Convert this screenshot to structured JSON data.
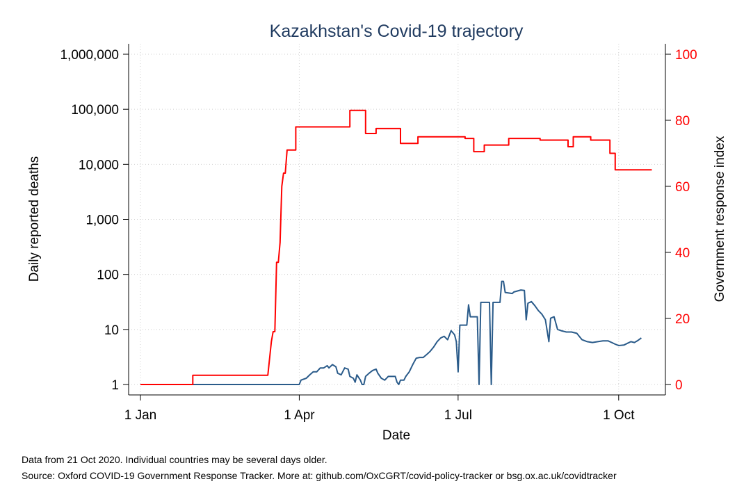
{
  "chart_data": {
    "type": "line",
    "title": "Kazakhstan's Covid-19 trajectory",
    "xlabel": "Date",
    "ylabel": "Daily reported deaths",
    "ylabel_right": "Government response index",
    "x_ticks": [
      {
        "label": "1 Jan",
        "date": "2020-01-01"
      },
      {
        "label": "1 Apr",
        "date": "2020-04-01"
      },
      {
        "label": "1 Jul",
        "date": "2020-07-01"
      },
      {
        "label": "1 Oct",
        "date": "2020-10-01"
      }
    ],
    "xlim": [
      "2020-01-01",
      "2020-10-21"
    ],
    "y_left_scale": "log",
    "ylim_left": [
      1,
      1000000
    ],
    "y_left_ticks": [
      {
        "label": "1",
        "value": 1
      },
      {
        "label": "10",
        "value": 10
      },
      {
        "label": "100",
        "value": 100
      },
      {
        "label": "1,000",
        "value": 1000
      },
      {
        "label": "10,000",
        "value": 10000
      },
      {
        "label": "100,000",
        "value": 100000
      },
      {
        "label": "1,000,000",
        "value": 1000000
      }
    ],
    "ylim_right": [
      0,
      100
    ],
    "y_right_ticks": [
      {
        "label": "0",
        "value": 0
      },
      {
        "label": "20",
        "value": 20
      },
      {
        "label": "40",
        "value": 40
      },
      {
        "label": "60",
        "value": 60
      },
      {
        "label": "80",
        "value": 80
      },
      {
        "label": "100",
        "value": 100
      }
    ],
    "grid": true,
    "series": [
      {
        "axis": "left",
        "color": "#2a5b8a",
        "points": [
          [
            "2020-01-01",
            1
          ],
          [
            "2020-04-01",
            1
          ],
          [
            "2020-04-02",
            1.2
          ],
          [
            "2020-04-05",
            1.3
          ],
          [
            "2020-04-07",
            1.5
          ],
          [
            "2020-04-09",
            1.7
          ],
          [
            "2020-04-11",
            1.7
          ],
          [
            "2020-04-13",
            2
          ],
          [
            "2020-04-15",
            2
          ],
          [
            "2020-04-17",
            2.2
          ],
          [
            "2020-04-18",
            2
          ],
          [
            "2020-04-20",
            2.3
          ],
          [
            "2020-04-22",
            2.1
          ],
          [
            "2020-04-23",
            1.6
          ],
          [
            "2020-04-25",
            1.5
          ],
          [
            "2020-04-27",
            2
          ],
          [
            "2020-04-29",
            1.9
          ],
          [
            "2020-04-30",
            1.4
          ],
          [
            "2020-05-02",
            1.3
          ],
          [
            "2020-05-03",
            1.1
          ],
          [
            "2020-05-04",
            1.5
          ],
          [
            "2020-05-06",
            1.2
          ],
          [
            "2020-05-07",
            1
          ],
          [
            "2020-05-08",
            1
          ],
          [
            "2020-05-09",
            1.4
          ],
          [
            "2020-05-11",
            1.6
          ],
          [
            "2020-05-13",
            1.8
          ],
          [
            "2020-05-15",
            1.9
          ],
          [
            "2020-05-16",
            1.6
          ],
          [
            "2020-05-18",
            1.3
          ],
          [
            "2020-05-20",
            1.2
          ],
          [
            "2020-05-22",
            1.4
          ],
          [
            "2020-05-24",
            1.4
          ],
          [
            "2020-05-26",
            1.4
          ],
          [
            "2020-05-27",
            1.1
          ],
          [
            "2020-05-28",
            1
          ],
          [
            "2020-05-29",
            1.2
          ],
          [
            "2020-05-31",
            1.2
          ],
          [
            "2020-06-01",
            1.4
          ],
          [
            "2020-06-03",
            1.7
          ],
          [
            "2020-06-05",
            2.3
          ],
          [
            "2020-06-07",
            3
          ],
          [
            "2020-06-09",
            3.1
          ],
          [
            "2020-06-11",
            3.1
          ],
          [
            "2020-06-13",
            3.5
          ],
          [
            "2020-06-15",
            4
          ],
          [
            "2020-06-17",
            4.8
          ],
          [
            "2020-06-19",
            6
          ],
          [
            "2020-06-21",
            7
          ],
          [
            "2020-06-23",
            7.5
          ],
          [
            "2020-06-25",
            6.5
          ],
          [
            "2020-06-27",
            9.5
          ],
          [
            "2020-06-29",
            8
          ],
          [
            "2020-06-30",
            6
          ],
          [
            "2020-07-01",
            1.7
          ],
          [
            "2020-07-02",
            12
          ],
          [
            "2020-07-06",
            12
          ],
          [
            "2020-07-07",
            28
          ],
          [
            "2020-07-08",
            17
          ],
          [
            "2020-07-12",
            17
          ],
          [
            "2020-07-13",
            1
          ],
          [
            "2020-07-14",
            31
          ],
          [
            "2020-07-19",
            31
          ],
          [
            "2020-07-20",
            1
          ],
          [
            "2020-07-21",
            31
          ],
          [
            "2020-07-25",
            31
          ],
          [
            "2020-07-26",
            75
          ],
          [
            "2020-07-27",
            75
          ],
          [
            "2020-07-28",
            47
          ],
          [
            "2020-08-01",
            45
          ],
          [
            "2020-08-02",
            48
          ],
          [
            "2020-08-04",
            50
          ],
          [
            "2020-08-06",
            52
          ],
          [
            "2020-08-08",
            51
          ],
          [
            "2020-08-09",
            15
          ],
          [
            "2020-08-10",
            30
          ],
          [
            "2020-08-12",
            32
          ],
          [
            "2020-08-14",
            27
          ],
          [
            "2020-08-16",
            22
          ],
          [
            "2020-08-18",
            19
          ],
          [
            "2020-08-20",
            15
          ],
          [
            "2020-08-22",
            6
          ],
          [
            "2020-08-23",
            16
          ],
          [
            "2020-08-25",
            17
          ],
          [
            "2020-08-27",
            10
          ],
          [
            "2020-08-29",
            9.5
          ],
          [
            "2020-09-01",
            9
          ],
          [
            "2020-09-04",
            9
          ],
          [
            "2020-09-07",
            8.5
          ],
          [
            "2020-09-10",
            6.5
          ],
          [
            "2020-09-13",
            6
          ],
          [
            "2020-09-16",
            5.8
          ],
          [
            "2020-09-19",
            6
          ],
          [
            "2020-09-22",
            6.2
          ],
          [
            "2020-09-25",
            6.2
          ],
          [
            "2020-09-27",
            5.8
          ],
          [
            "2020-09-29",
            5.4
          ],
          [
            "2020-10-01",
            5.1
          ],
          [
            "2020-10-04",
            5.2
          ],
          [
            "2020-10-06",
            5.6
          ],
          [
            "2020-10-08",
            6
          ],
          [
            "2020-10-10",
            5.8
          ],
          [
            "2020-10-12",
            6.3
          ],
          [
            "2020-10-14",
            7
          ]
        ]
      },
      {
        "axis": "right",
        "color": "#ff0000",
        "points": [
          [
            "2020-01-01",
            0
          ],
          [
            "2020-01-31",
            0
          ],
          [
            "2020-01-31",
            2.8
          ],
          [
            "2020-03-14",
            2.8
          ],
          [
            "2020-03-15",
            8
          ],
          [
            "2020-03-16",
            13
          ],
          [
            "2020-03-17",
            16
          ],
          [
            "2020-03-18",
            16
          ],
          [
            "2020-03-19",
            37
          ],
          [
            "2020-03-20",
            37
          ],
          [
            "2020-03-21",
            43
          ],
          [
            "2020-03-22",
            60
          ],
          [
            "2020-03-23",
            64
          ],
          [
            "2020-03-24",
            64
          ],
          [
            "2020-03-25",
            71
          ],
          [
            "2020-03-30",
            71
          ],
          [
            "2020-03-30",
            78
          ],
          [
            "2020-04-30",
            78
          ],
          [
            "2020-04-30",
            83
          ],
          [
            "2020-05-09",
            83
          ],
          [
            "2020-05-09",
            76
          ],
          [
            "2020-05-15",
            76
          ],
          [
            "2020-05-15",
            77.5
          ],
          [
            "2020-05-29",
            77.5
          ],
          [
            "2020-05-29",
            73
          ],
          [
            "2020-06-08",
            73
          ],
          [
            "2020-06-08",
            75
          ],
          [
            "2020-07-05",
            75
          ],
          [
            "2020-07-05",
            74.5
          ],
          [
            "2020-07-10",
            74.5
          ],
          [
            "2020-07-10",
            70.5
          ],
          [
            "2020-07-16",
            70.5
          ],
          [
            "2020-07-16",
            72.5
          ],
          [
            "2020-07-30",
            72.5
          ],
          [
            "2020-07-30",
            74.5
          ],
          [
            "2020-08-17",
            74.5
          ],
          [
            "2020-08-17",
            74
          ],
          [
            "2020-09-02",
            74
          ],
          [
            "2020-09-02",
            72
          ],
          [
            "2020-09-05",
            72
          ],
          [
            "2020-09-05",
            75
          ],
          [
            "2020-09-15",
            75
          ],
          [
            "2020-09-15",
            74
          ],
          [
            "2020-09-26",
            74
          ],
          [
            "2020-09-26",
            70
          ],
          [
            "2020-09-29",
            70
          ],
          [
            "2020-09-29",
            65
          ],
          [
            "2020-10-20",
            65
          ]
        ]
      }
    ]
  },
  "notes": {
    "line1": "Data from 21 Oct 2020. Individual countries may be several days older.",
    "line2": "Source: Oxford COVID-19 Government Response Tracker. More at: github.com/OxCGRT/covid-policy-tracker or bsg.ox.ac.uk/covidtracker"
  },
  "colors": {
    "title": "#1f3a5f",
    "right_axis": "#ff0000",
    "grid": "#d0d0d0",
    "frame": "#000000"
  }
}
